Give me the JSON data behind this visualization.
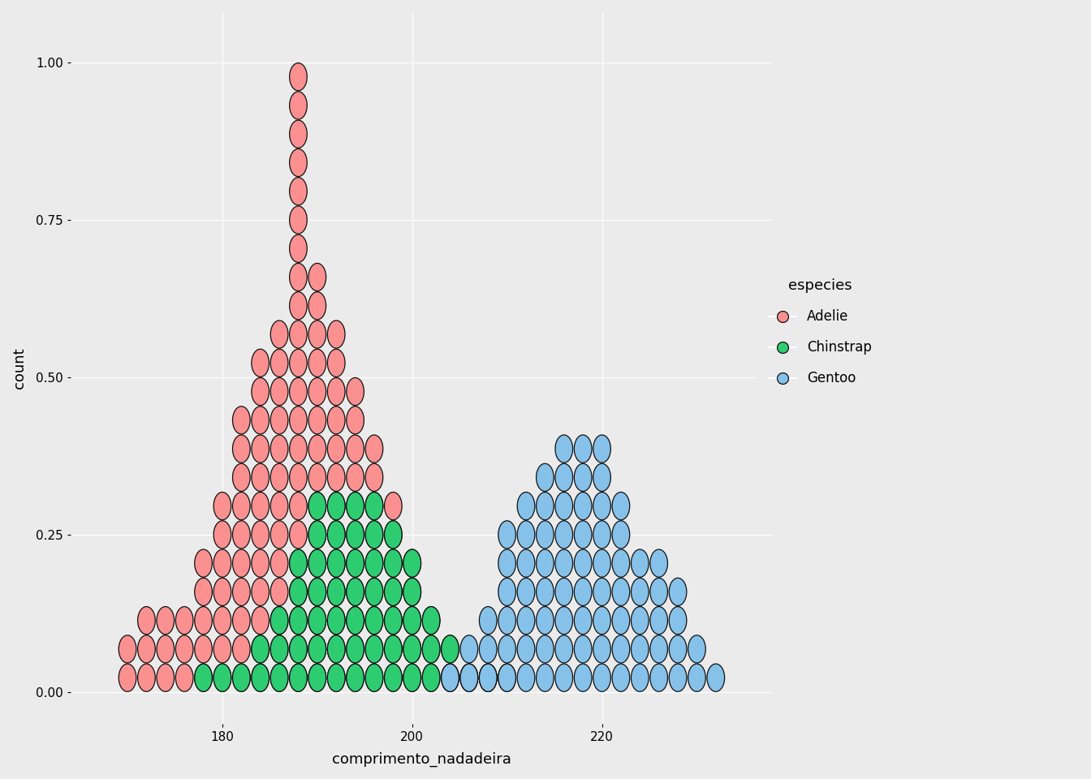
{
  "xlabel": "comprimento_nadadeira",
  "ylabel": "count",
  "plot_bg": "#EBEBEB",
  "fig_bg": "#EBEBEB",
  "grid_color": "#FFFFFF",
  "colors": {
    "Adelie": "#FA9090",
    "Chinstrap": "#2ECC71",
    "Gentoo": "#85C1E9"
  },
  "edge_color": "#111111",
  "alpha": 1.0,
  "ylim": [
    -0.05,
    1.08
  ],
  "xlim": [
    164,
    238
  ],
  "yticks": [
    0.0,
    0.25,
    0.5,
    0.75,
    1.0
  ],
  "xticks": [
    180,
    200,
    220
  ],
  "legend_title": "especies",
  "legend_entries": [
    "Adelie",
    "Chinstrap",
    "Gentoo"
  ],
  "bin_width": 2,
  "figsize": [
    13.44,
    9.6
  ],
  "dpi": 100,
  "max_count": 22
}
